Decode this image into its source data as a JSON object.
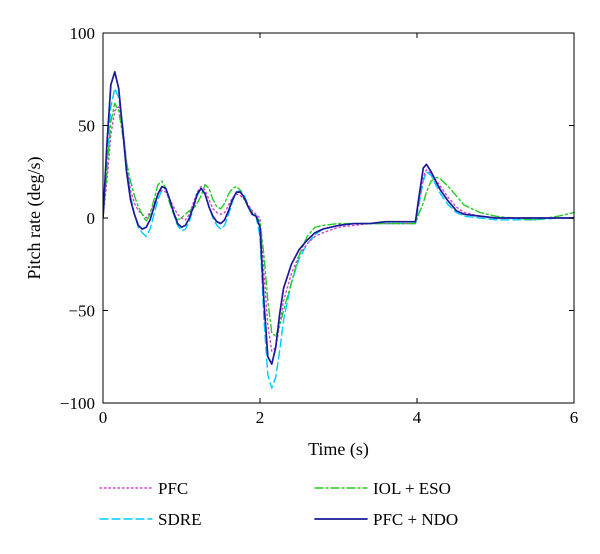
{
  "chart_data": {
    "type": "line",
    "title": "",
    "xlabel": "Time (s)",
    "ylabel": "Pitch rate (deg/s)",
    "xlim": [
      0,
      6
    ],
    "ylim": [
      -100,
      100
    ],
    "xticks": [
      0,
      2,
      4,
      6
    ],
    "yticks": [
      -100,
      -50,
      0,
      50,
      100
    ],
    "xtick_labels": [
      "0",
      "2",
      "4",
      "6"
    ],
    "ytick_labels": [
      "−100",
      "−50",
      "0",
      "50",
      "100"
    ],
    "grid": false,
    "legend_position": "below-plot",
    "series": [
      {
        "name": "PFC",
        "color": "#cc44cc",
        "style": "dotted",
        "x": [
          0,
          0.05,
          0.1,
          0.15,
          0.2,
          0.25,
          0.3,
          0.35,
          0.4,
          0.45,
          0.5,
          0.55,
          0.6,
          0.65,
          0.7,
          0.75,
          0.8,
          0.85,
          0.9,
          0.95,
          1.0,
          1.05,
          1.1,
          1.15,
          1.2,
          1.25,
          1.3,
          1.35,
          1.4,
          1.45,
          1.5,
          1.55,
          1.6,
          1.65,
          1.7,
          1.75,
          1.8,
          1.85,
          1.9,
          1.95,
          2.0,
          2.05,
          2.1,
          2.15,
          2.2,
          2.25,
          2.3,
          2.4,
          2.5,
          2.6,
          2.7,
          2.8,
          3.0,
          3.2,
          3.4,
          3.6,
          3.8,
          3.98,
          4.02,
          4.08,
          4.12,
          4.18,
          4.25,
          4.3,
          4.4,
          4.5,
          4.6,
          4.8,
          5.0,
          5.2,
          5.5,
          5.8,
          6.0
        ],
        "y": [
          0,
          20,
          45,
          58,
          60,
          50,
          30,
          15,
          8,
          4,
          2,
          0,
          3,
          8,
          13,
          15,
          14,
          10,
          6,
          2,
          0,
          -1,
          2,
          8,
          14,
          17,
          15,
          10,
          5,
          3,
          2,
          3,
          7,
          11,
          13,
          12,
          10,
          7,
          4,
          2,
          0,
          -30,
          -58,
          -72,
          -70,
          -58,
          -45,
          -30,
          -20,
          -14,
          -10,
          -8,
          -5,
          -4,
          -3,
          -3,
          -3,
          -3,
          8,
          22,
          26,
          24,
          20,
          17,
          11,
          6,
          3,
          1,
          0,
          0,
          0,
          0,
          0
        ]
      },
      {
        "name": "SDRE",
        "color": "#00ccff",
        "style": "dashed",
        "x": [
          0,
          0.05,
          0.1,
          0.15,
          0.2,
          0.25,
          0.3,
          0.35,
          0.4,
          0.45,
          0.5,
          0.55,
          0.6,
          0.65,
          0.7,
          0.75,
          0.8,
          0.85,
          0.9,
          0.95,
          1.0,
          1.05,
          1.1,
          1.15,
          1.2,
          1.25,
          1.3,
          1.35,
          1.4,
          1.45,
          1.5,
          1.55,
          1.6,
          1.65,
          1.7,
          1.75,
          1.8,
          1.85,
          1.9,
          1.95,
          2.0,
          2.05,
          2.1,
          2.15,
          2.2,
          2.25,
          2.3,
          2.4,
          2.5,
          2.6,
          2.7,
          2.8,
          3.0,
          3.2,
          3.4,
          3.6,
          3.8,
          3.98,
          4.02,
          4.08,
          4.12,
          4.18,
          4.25,
          4.3,
          4.4,
          4.5,
          4.6,
          4.8,
          5.0,
          5.2,
          5.5,
          5.8,
          6.0
        ],
        "y": [
          0,
          30,
          60,
          70,
          65,
          50,
          30,
          12,
          2,
          -5,
          -8,
          -10,
          -6,
          2,
          10,
          15,
          16,
          10,
          2,
          -4,
          -7,
          -6,
          -2,
          5,
          12,
          16,
          13,
          6,
          0,
          -4,
          -6,
          -4,
          2,
          9,
          14,
          15,
          12,
          7,
          3,
          1,
          -10,
          -55,
          -85,
          -92,
          -86,
          -72,
          -55,
          -35,
          -22,
          -14,
          -9,
          -6,
          -4,
          -3,
          -3,
          -3,
          -3,
          -3,
          6,
          20,
          25,
          23,
          17,
          13,
          7,
          3,
          1,
          0,
          -1,
          -1,
          -1,
          0,
          0
        ]
      },
      {
        "name": "IOL + ESO",
        "color": "#22cc22",
        "style": "dashdot",
        "x": [
          0,
          0.05,
          0.1,
          0.15,
          0.2,
          0.25,
          0.3,
          0.35,
          0.4,
          0.45,
          0.5,
          0.55,
          0.6,
          0.65,
          0.7,
          0.75,
          0.8,
          0.85,
          0.9,
          0.95,
          1.0,
          1.05,
          1.1,
          1.15,
          1.2,
          1.25,
          1.3,
          1.35,
          1.4,
          1.45,
          1.5,
          1.55,
          1.6,
          1.65,
          1.7,
          1.75,
          1.8,
          1.85,
          1.9,
          1.95,
          2.0,
          2.05,
          2.1,
          2.15,
          2.2,
          2.25,
          2.3,
          2.4,
          2.5,
          2.6,
          2.7,
          2.8,
          3.0,
          3.2,
          3.4,
          3.6,
          3.8,
          3.98,
          4.02,
          4.08,
          4.12,
          4.18,
          4.25,
          4.3,
          4.4,
          4.5,
          4.6,
          4.8,
          5.0,
          5.2,
          5.5,
          5.8,
          6.0
        ],
        "y": [
          0,
          25,
          52,
          62,
          58,
          45,
          30,
          20,
          12,
          6,
          2,
          -2,
          2,
          10,
          18,
          20,
          16,
          8,
          2,
          -1,
          0,
          2,
          4,
          5,
          8,
          12,
          18,
          16,
          10,
          6,
          5,
          8,
          13,
          16,
          17,
          15,
          10,
          6,
          3,
          1,
          -2,
          -20,
          -45,
          -62,
          -64,
          -58,
          -50,
          -35,
          -20,
          -10,
          -5,
          -4,
          -3,
          -3,
          -3,
          -3,
          -3,
          -3,
          2,
          8,
          14,
          20,
          22,
          21,
          17,
          12,
          7,
          3,
          1,
          0,
          -1,
          1,
          3
        ]
      },
      {
        "name": "PFC + NDO",
        "color": "#1a1a99",
        "style": "solid",
        "x": [
          0,
          0.05,
          0.1,
          0.15,
          0.2,
          0.25,
          0.3,
          0.35,
          0.4,
          0.45,
          0.5,
          0.55,
          0.6,
          0.65,
          0.7,
          0.75,
          0.8,
          0.85,
          0.9,
          0.95,
          1.0,
          1.05,
          1.1,
          1.15,
          1.2,
          1.25,
          1.3,
          1.35,
          1.4,
          1.45,
          1.5,
          1.55,
          1.6,
          1.65,
          1.7,
          1.75,
          1.8,
          1.85,
          1.9,
          1.95,
          2.0,
          2.05,
          2.1,
          2.15,
          2.2,
          2.25,
          2.3,
          2.4,
          2.5,
          2.6,
          2.7,
          2.8,
          3.0,
          3.2,
          3.4,
          3.6,
          3.8,
          3.98,
          4.02,
          4.08,
          4.12,
          4.18,
          4.25,
          4.3,
          4.4,
          4.5,
          4.6,
          4.8,
          5.0,
          5.2,
          5.5,
          5.8,
          6.0
        ],
        "y": [
          0,
          40,
          72,
          79,
          70,
          48,
          25,
          10,
          2,
          -4,
          -6,
          -5,
          -1,
          6,
          13,
          17,
          16,
          10,
          3,
          -3,
          -5,
          -4,
          0,
          6,
          13,
          16,
          13,
          6,
          1,
          -2,
          -3,
          -1,
          4,
          10,
          14,
          14,
          11,
          6,
          2,
          1,
          -5,
          -45,
          -75,
          -79,
          -70,
          -52,
          -38,
          -25,
          -17,
          -12,
          -8,
          -6,
          -4,
          -3,
          -3,
          -2,
          -2,
          -2,
          10,
          27,
          29,
          25,
          19,
          15,
          9,
          4,
          2,
          1,
          0,
          0,
          0,
          0,
          0
        ]
      }
    ]
  }
}
